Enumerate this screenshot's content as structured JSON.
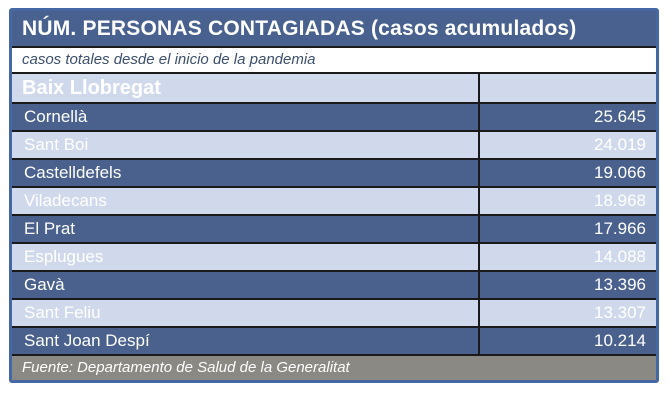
{
  "header": {
    "title": "NÚM. PERSONAS CONTAGIADAS (casos acumulados)",
    "subtitle": "casos totales desde el inicio de la pandemia",
    "region_label": "Baix Llobregat",
    "region_value": ""
  },
  "rows": [
    {
      "name": "Cornellà",
      "value": "25.645",
      "variant": "dark"
    },
    {
      "name": "Sant Boi",
      "value": "24.019",
      "variant": "light"
    },
    {
      "name": "Castelldefels",
      "value": "19.066",
      "variant": "dark"
    },
    {
      "name": "Viladecans",
      "value": "18.968",
      "variant": "light"
    },
    {
      "name": "El Prat",
      "value": "17.966",
      "variant": "dark"
    },
    {
      "name": "Esplugues",
      "value": "14.088",
      "variant": "light"
    },
    {
      "name": "Gavà",
      "value": "13.396",
      "variant": "dark"
    },
    {
      "name": "Sant Feliu",
      "value": "13.307",
      "variant": "light"
    },
    {
      "name": "Sant Joan Despí",
      "value": "10.214",
      "variant": "dark"
    }
  ],
  "footer": {
    "source": "Fuente: Departamento de Salud de la Generalitat"
  },
  "colors": {
    "title_bg": "#48618F",
    "dark_row": "#4A618D",
    "light_row": "#CFD9EB",
    "footer_bg": "#8B8983",
    "outer_border": "#4568A5",
    "cell_border": "#1A1A1A",
    "subtitle_text": "#3C4F6E",
    "text_on_rows": "#FFFFFF"
  },
  "chart_data": {
    "type": "table",
    "title": "NÚM. PERSONAS CONTAGIADAS (casos acumulados)",
    "subtitle": "casos totales desde el inicio de la pandemia",
    "group": "Baix Llobregat",
    "categories": [
      "Cornellà",
      "Sant Boi",
      "Castelldefels",
      "Viladecans",
      "El Prat",
      "Esplugues",
      "Gavà",
      "Sant Feliu",
      "Sant Joan Despí"
    ],
    "values": [
      25645,
      24019,
      19066,
      18968,
      17966,
      14088,
      13396,
      13307,
      10214
    ],
    "value_format": "thousands separated by dot",
    "source": "Fuente: Departamento de Salud de la Generalitat"
  }
}
